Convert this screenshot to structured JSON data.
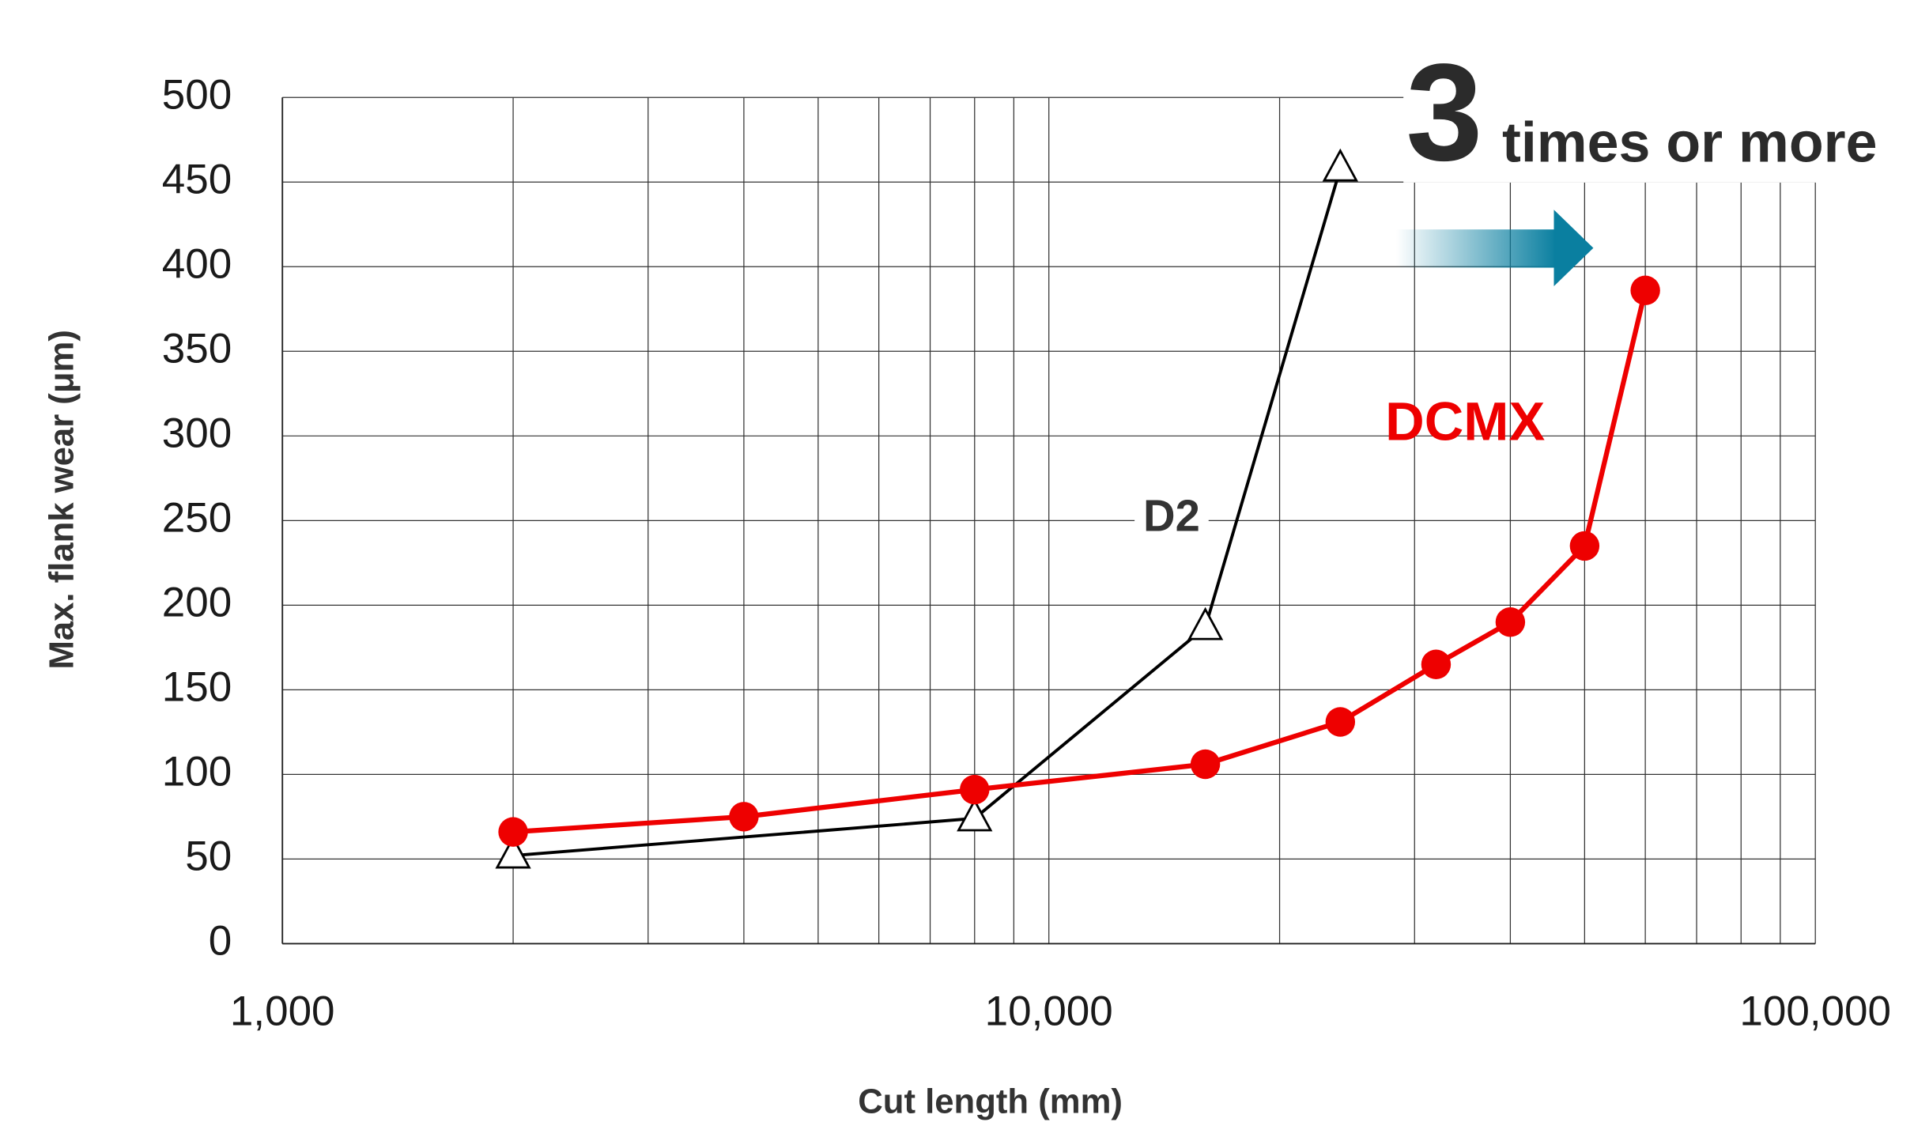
{
  "chart_data": {
    "type": "line",
    "xlabel": "Cut length (mm)",
    "ylabel": "Max. flank wear (μm)",
    "xscale": "log",
    "grid": true,
    "xlim": [
      1000,
      100000
    ],
    "xticks": [
      {
        "value": 1000,
        "label": "1,000"
      },
      {
        "value": 10000,
        "label": "10,000"
      },
      {
        "value": 100000,
        "label": "100,000"
      }
    ],
    "ylim": [
      0,
      500
    ],
    "yticks": [
      0,
      50,
      100,
      150,
      200,
      250,
      300,
      350,
      400,
      450,
      500
    ],
    "series": [
      {
        "name": "D2",
        "color": "#000000",
        "marker": "triangle",
        "x": [
          2000,
          8000,
          16000,
          24000
        ],
        "values": [
          52,
          74,
          187,
          458
        ]
      },
      {
        "name": "DCMX",
        "color": "#ee0000",
        "marker": "circle",
        "x": [
          2000,
          4000,
          8000,
          16000,
          24000,
          32000,
          40000,
          50000,
          60000
        ],
        "values": [
          66,
          75,
          91,
          106,
          131,
          165,
          190,
          235,
          386
        ]
      }
    ],
    "annotations": [
      "3",
      "times or more"
    ]
  }
}
